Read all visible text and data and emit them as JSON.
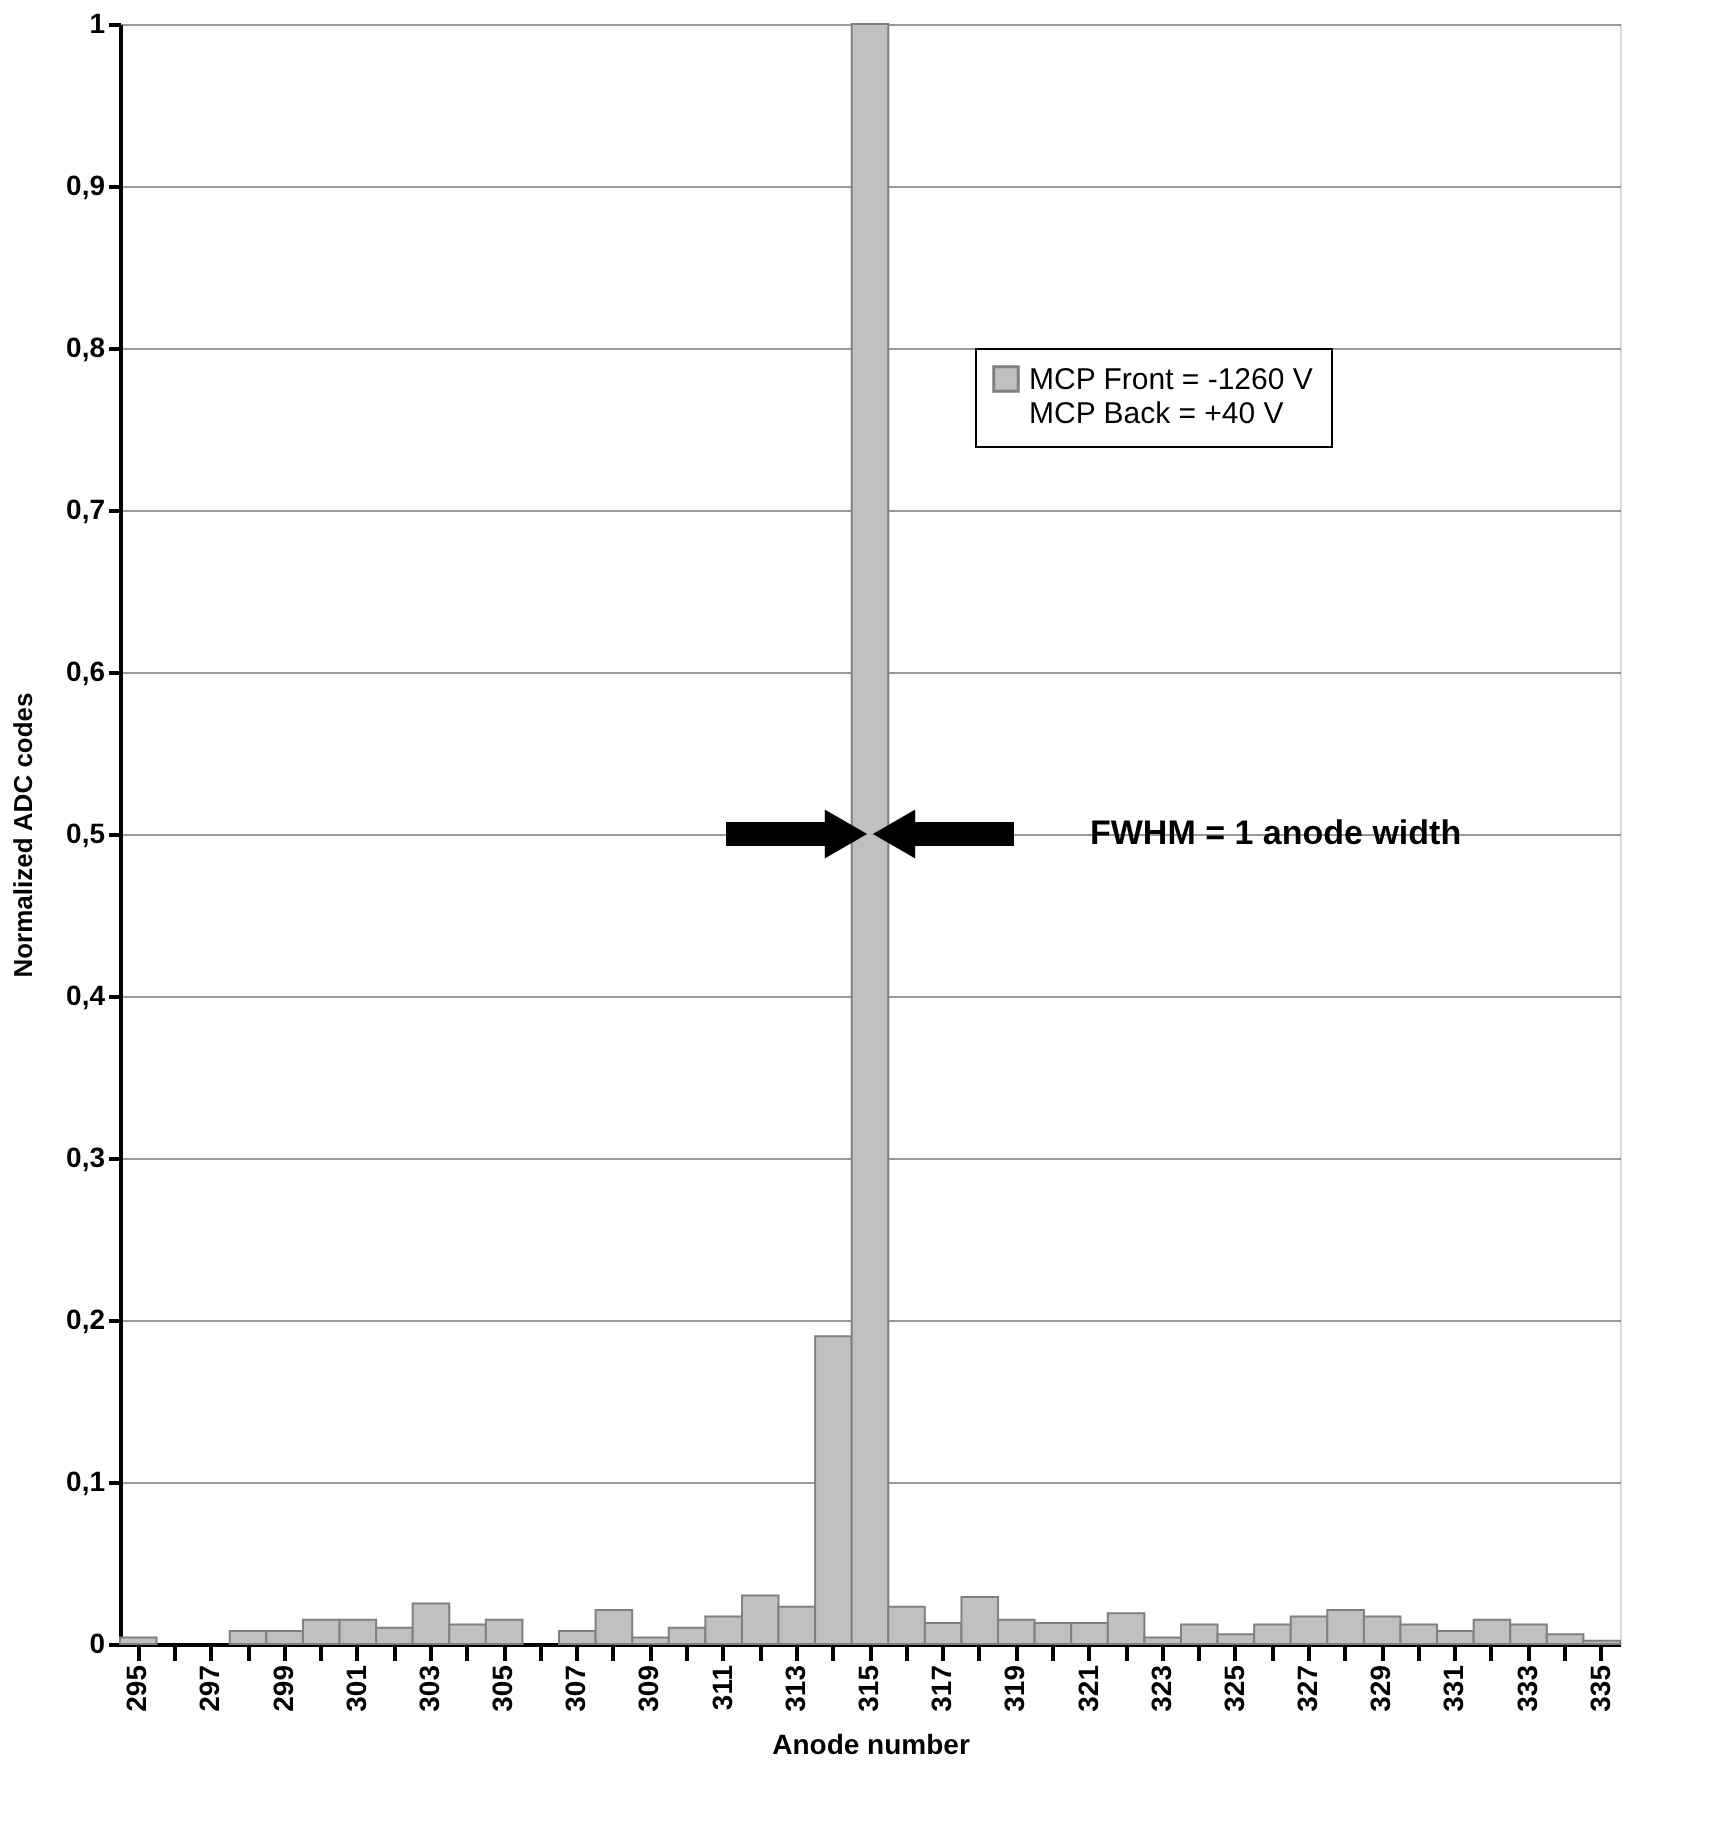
{
  "chart_data": {
    "type": "bar",
    "xlabel": "Anode number",
    "ylabel": "Normalized ADC codes",
    "categories": [
      "295",
      null,
      "297",
      null,
      "299",
      null,
      "301",
      null,
      "303",
      null,
      "305",
      null,
      "307",
      null,
      "309",
      null,
      "311",
      null,
      "313",
      null,
      "315",
      null,
      "317",
      null,
      "319",
      null,
      "321",
      null,
      "323",
      null,
      "325",
      null,
      "327",
      null,
      "329",
      null,
      "331",
      null,
      "333",
      null,
      "335"
    ],
    "series": [
      {
        "name": "MCP Front = -1260 V\nMCP Back = +40 V",
        "color": "#c0c0c0",
        "values": [
          0.004,
          0,
          0,
          0.008,
          0.008,
          0.015,
          0.015,
          0.01,
          0.025,
          0.012,
          0.015,
          0,
          0.008,
          0.021,
          0.004,
          0.01,
          0.017,
          0.03,
          0.023,
          0.19,
          1,
          0.023,
          0.013,
          0.029,
          0.015,
          0.013,
          0.013,
          0.019,
          0.004,
          0.012,
          0.006,
          0.012,
          0.017,
          0.021,
          0.017,
          0.012,
          0.008,
          0.015,
          0.012,
          0.006,
          0.002
        ]
      }
    ],
    "ylim": [
      0,
      1
    ],
    "yticks": [
      0,
      {
        "value": 0.1,
        "label": "0,1"
      },
      {
        "value": 0.2,
        "label": "0,2"
      },
      {
        "value": 0.3,
        "label": "0,3"
      },
      {
        "value": 0.4,
        "label": "0,4"
      },
      {
        "value": 0.5,
        "label": "0,5"
      },
      {
        "value": 0.6,
        "label": "0,6"
      },
      {
        "value": 0.7,
        "label": "0,7"
      },
      {
        "value": 0.8,
        "label": "0,8"
      },
      {
        "value": 0.9,
        "label": "0,9"
      },
      1
    ],
    "grid": "y",
    "legend": "top right",
    "annotations": [
      "FWHM = 1 anode width"
    ]
  }
}
